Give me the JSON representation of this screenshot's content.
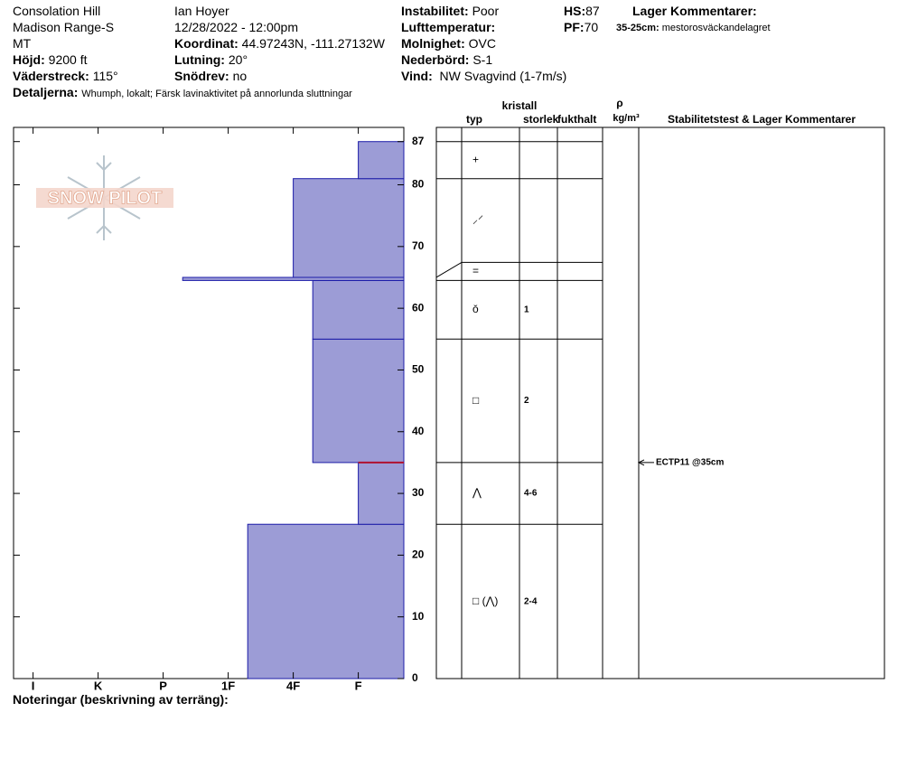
{
  "header": {
    "site": "Consolation Hill",
    "range": "Madison Range-S",
    "state": "MT",
    "elevation": {
      "label": "Höjd:",
      "value": "9200 ft"
    },
    "aspect": {
      "label": "Väderstreck:",
      "value": "115°"
    },
    "details": {
      "label": "Detaljerna:",
      "value": "Whumph, lokalt; Färsk lavinaktivitet på annorlunda sluttningar"
    },
    "observer": "Ian Hoyer",
    "datetime": "12/28/2022 - 12:00pm",
    "coordinates": {
      "label": "Koordinat:",
      "value": "44.97243N, -111.27132W"
    },
    "slope": {
      "label": "Lutning:",
      "value": "20°"
    },
    "wind_loading": {
      "label": "Snödrev:",
      "value": "no"
    },
    "instability": {
      "label": "Instabilitet:",
      "value": "Poor"
    },
    "air_temp": {
      "label": "Lufttemperatur:"
    },
    "sky": {
      "label": "Molnighet:",
      "value": "OVC"
    },
    "precip": {
      "label": "Nederbörd:",
      "value": "S-1"
    },
    "wind": {
      "label": "Vind:",
      "value": "NW Svagvind (1-7m/s)"
    },
    "hs": {
      "label": "HS:",
      "value": 87
    },
    "pf": {
      "label": "PF:",
      "value": 70
    },
    "layer_comments_title": "Lager Kommentarer:",
    "layer_comment": {
      "label": "35-25cm:",
      "value": "mestorosväckandelagret"
    }
  },
  "logo": "SNOW PILOT",
  "notes_label": "Noteringar (beskrivning av terräng):",
  "columns": {
    "type": "typ",
    "crystal": "kristall",
    "size": "storlek",
    "moisture": "fukthalt",
    "rho": "ρ",
    "density_unit": "kg/m³",
    "tests": "Stabilitetstest & Lager Kommentarer"
  },
  "chart_data": {
    "type": "snow-profile",
    "color": "#9c9cd6",
    "edge_color": "#1c1ca8",
    "concern_color": "#b01030",
    "xlim": [
      0.3,
      6.3
    ],
    "xticks": [
      {
        "value": 6,
        "label": "I"
      },
      {
        "value": 5,
        "label": "K"
      },
      {
        "value": 4,
        "label": "P"
      },
      {
        "value": 3,
        "label": "1F"
      },
      {
        "value": 2,
        "label": "4F"
      },
      {
        "value": 1,
        "label": "F"
      }
    ],
    "ylim": [
      0,
      89.3
    ],
    "yticks": [
      0,
      10,
      20,
      30,
      40,
      50,
      60,
      70,
      80,
      87
    ],
    "layers": [
      {
        "bottom": 0,
        "top": 25,
        "hardness": 2.7,
        "grain": "□ (⋀)",
        "size": "2-4"
      },
      {
        "bottom": 25,
        "top": 35,
        "hardness": 1,
        "grain": "⋀",
        "size": "4-6"
      },
      {
        "bottom": 35,
        "top": 55,
        "hardness": 1.7,
        "grain": "□",
        "size": "2"
      },
      {
        "bottom": 55,
        "top": 64.5,
        "hardness": 1.7,
        "grain": "ǒ",
        "size": "1"
      },
      {
        "bottom": 64.5,
        "top": 65,
        "hardness": 3.7,
        "grain": "="
      },
      {
        "bottom": 65,
        "top": 81,
        "hardness": 2,
        "grain": "⸝⸍"
      },
      {
        "bottom": 81,
        "top": 87,
        "hardness": 1,
        "grain": "+"
      }
    ],
    "concern_height": 35,
    "tests": [
      {
        "height": 35,
        "label": "ECTP11 @35cm"
      }
    ]
  }
}
